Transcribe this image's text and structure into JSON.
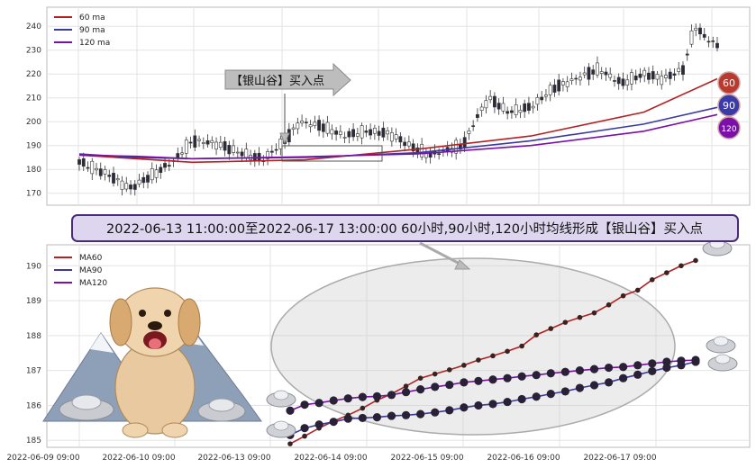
{
  "top_chart": {
    "type": "candlestick",
    "ylim": [
      165,
      248
    ],
    "yticks": [
      170,
      180,
      190,
      200,
      210,
      220,
      230,
      240
    ],
    "legend": [
      {
        "name": "60 ma",
        "color": "#b22222"
      },
      {
        "name": "90 ma",
        "color": "#3a3aa0"
      },
      {
        "name": "120 ma",
        "color": "#7a10a8"
      }
    ],
    "annotation": "【银山谷】买入点",
    "badges": [
      {
        "label": "60",
        "color": "#b83a2e",
        "value": 218
      },
      {
        "label": "90",
        "color": "#3a3aa8",
        "value": 206
      },
      {
        "label": "120",
        "color": "#7a10a8",
        "value": 198
      }
    ]
  },
  "banner": {
    "text": "2022-06-13 11:00:00至2022-06-17 13:00:00 60小时,90小时,120小时均线形成【银山谷】买入点"
  },
  "chart_data": {
    "type": "line",
    "x_ticks": [
      "2022-06-09 09:00",
      "2022-06-10 09:00",
      "2022-06-13 09:00",
      "2022-06-14 09:00",
      "2022-06-15 09:00",
      "2022-06-16 09:00",
      "2022-06-17 09:00"
    ],
    "ylim": [
      184.8,
      190.6
    ],
    "yticks": [
      185,
      186,
      187,
      188,
      189,
      190
    ],
    "grid": true,
    "legend_position": "top-left",
    "series": [
      {
        "name": "MA60",
        "color": "#b22222",
        "values": [
          184.9,
          185.12,
          185.35,
          185.55,
          185.72,
          185.92,
          186.15,
          186.33,
          186.55,
          186.78,
          186.9,
          187.02,
          187.15,
          187.3,
          187.42,
          187.55,
          187.7,
          188.02,
          188.2,
          188.38,
          188.52,
          188.65,
          188.88,
          189.14,
          189.3,
          189.6,
          189.8,
          190.0,
          190.15
        ]
      },
      {
        "name": "MA90",
        "color": "#3a3aa0",
        "values": [
          185.15,
          185.35,
          185.45,
          185.53,
          185.62,
          185.64,
          185.66,
          185.7,
          185.72,
          185.75,
          185.8,
          185.86,
          185.94,
          186.0,
          186.04,
          186.1,
          186.18,
          186.25,
          186.33,
          186.4,
          186.5,
          186.58,
          186.66,
          186.78,
          186.88,
          186.98,
          187.08,
          187.15,
          187.25
        ]
      },
      {
        "name": "MA120",
        "color": "#7a10a8",
        "values": [
          185.85,
          186.02,
          186.07,
          186.14,
          186.2,
          186.24,
          186.26,
          186.3,
          186.38,
          186.46,
          186.53,
          186.59,
          186.66,
          186.7,
          186.74,
          186.78,
          186.83,
          186.87,
          186.92,
          186.96,
          187.0,
          187.04,
          187.08,
          187.1,
          187.15,
          187.2,
          187.25,
          187.28,
          187.3
        ]
      }
    ]
  }
}
